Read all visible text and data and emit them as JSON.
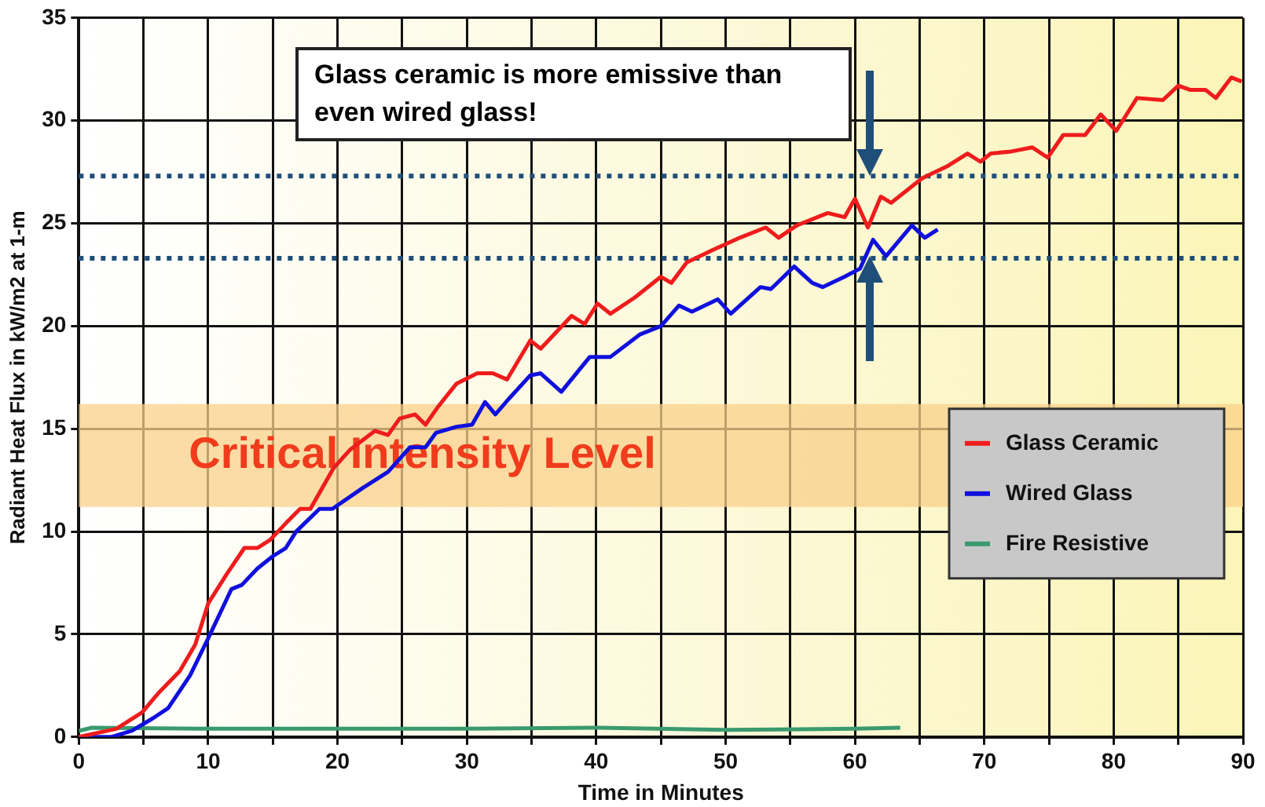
{
  "chart_data": {
    "type": "line",
    "xlabel": "Time in Minutes",
    "ylabel": "Radiant Heat Flux in kW/m2 at 1-m",
    "annotations": [
      "Glass ceramic is more emissive than even wired glass!"
    ],
    "xlim": [
      0,
      90
    ],
    "xticks": [
      0,
      {
        "value": 5,
        "label": null
      },
      10,
      {
        "value": 15,
        "label": null
      },
      20,
      {
        "value": 25,
        "label": null
      },
      30,
      {
        "value": 35,
        "label": null
      },
      40,
      {
        "value": 45,
        "label": null
      },
      50,
      {
        "value": 55,
        "label": null
      },
      60,
      {
        "value": 65,
        "label": null
      },
      70,
      {
        "value": 75,
        "label": null
      },
      80,
      {
        "value": 85,
        "label": null
      },
      90
    ],
    "ylim": [
      0,
      35
    ],
    "yticks": [
      0,
      5,
      10,
      15,
      20,
      25,
      30,
      35
    ],
    "grid": true,
    "legend": "right",
    "line_style": "solid",
    "bands": [
      {
        "axis": "y",
        "from": 11.2,
        "to": 16.2,
        "label": "Critical Intensity Level",
        "color": "#f9d08a"
      }
    ],
    "ref_lines": [
      {
        "axis": "y",
        "value": 27.3,
        "color": "#1f4e79",
        "line_style": "dotted"
      },
      {
        "axis": "y",
        "value": 23.3,
        "color": "#1f4e79",
        "line_style": "dotted"
      }
    ],
    "series": [
      {
        "name": "Glass Ceramic",
        "color": "#ee1c1c",
        "x": [
          0,
          2.9,
          4.9,
          6.1,
          7.8,
          9,
          10,
          11.4,
          12.8,
          13.8,
          14.8,
          16,
          17.1,
          17.9,
          19.7,
          21,
          22.9,
          23.9,
          24.8,
          26,
          26.8,
          27.8,
          29.2,
          30.8,
          32,
          33.1,
          34.9,
          35.7,
          38.1,
          39.1,
          40.1,
          41.1,
          43,
          45,
          45.8,
          47,
          49,
          51.1,
          53.1,
          54.1,
          55.5,
          57.9,
          59.2,
          60,
          61,
          62,
          62.8,
          65.2,
          67.2,
          68.7,
          69.7,
          70.5,
          72.1,
          73.7,
          74.9,
          76.1,
          77.8,
          79,
          80.2,
          81.8,
          83.8,
          85,
          85.9,
          87.1,
          87.9,
          89.1,
          89.9
        ],
        "values": [
          0,
          0.4,
          1.2,
          2.1,
          3.2,
          4.5,
          6.5,
          7.9,
          9.2,
          9.2,
          9.6,
          10.4,
          11.1,
          11.1,
          13.1,
          14,
          14.9,
          14.7,
          15.5,
          15.7,
          15.2,
          16.1,
          17.2,
          17.7,
          17.7,
          17.4,
          19.3,
          18.9,
          20.5,
          20.1,
          21.1,
          20.6,
          21.4,
          22.4,
          22.1,
          23.1,
          23.7,
          24.3,
          24.8,
          24.3,
          24.9,
          25.5,
          25.3,
          26.2,
          24.8,
          26.3,
          26,
          27.2,
          27.8,
          28.4,
          28,
          28.4,
          28.5,
          28.7,
          28.2,
          29.3,
          29.3,
          30.3,
          29.5,
          31.1,
          31,
          31.7,
          31.5,
          31.5,
          31.1,
          32.1,
          31.9
        ]
      },
      {
        "name": "Wired Glass",
        "color": "#1010dd",
        "x": [
          0,
          2.5,
          4.1,
          5.7,
          6.9,
          8.6,
          10,
          11.8,
          12.6,
          13.8,
          15,
          16,
          16.8,
          18.6,
          19.6,
          21.9,
          23.9,
          25.6,
          26.8,
          27.6,
          29.2,
          30.4,
          31.4,
          32.2,
          33.3,
          34.9,
          35.7,
          37.3,
          39.5,
          41.1,
          43.4,
          45,
          46.4,
          47.4,
          49.4,
          50.4,
          52.7,
          53.5,
          55.3,
          56.7,
          57.5,
          59.2,
          60.4,
          61.4,
          62.4,
          64.4,
          65.4,
          66.4
        ],
        "values": [
          0,
          0,
          0.3,
          0.9,
          1.4,
          3,
          4.8,
          7.2,
          7.4,
          8.2,
          8.8,
          9.2,
          10,
          11.1,
          11.1,
          12.1,
          12.9,
          14.1,
          14.1,
          14.8,
          15.1,
          15.2,
          16.3,
          15.7,
          16.5,
          17.6,
          17.7,
          16.8,
          18.5,
          18.5,
          19.6,
          20,
          21,
          20.7,
          21.3,
          20.6,
          21.9,
          21.8,
          22.9,
          22.1,
          21.9,
          22.4,
          22.8,
          24.2,
          23.4,
          24.9,
          24.3,
          24.7
        ]
      },
      {
        "name": "Fire Resistive",
        "color": "#3a9a6e",
        "x": [
          0,
          1,
          10,
          20,
          30,
          40,
          50,
          60,
          63.5
        ],
        "values": [
          0.3,
          0.45,
          0.4,
          0.4,
          0.4,
          0.45,
          0.35,
          0.4,
          0.45
        ]
      }
    ]
  }
}
